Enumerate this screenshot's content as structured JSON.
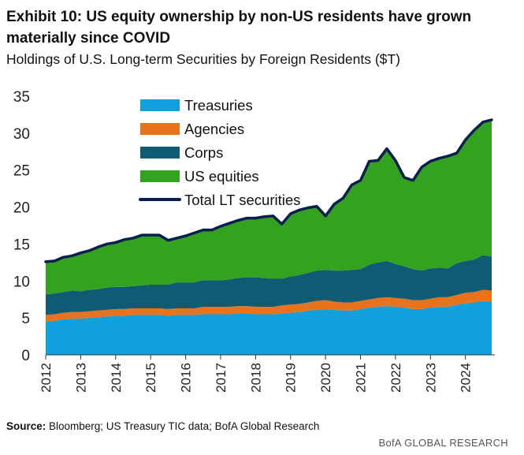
{
  "title": "Exhibit 10: US equity ownership by non-US residents have grown materially since COVID",
  "subtitle": "Holdings of U.S. Long-term Securities by Foreign Residents ($T)",
  "source_label": "Source:",
  "source_text": " Bloomberg; US Treasury TIC data; BofA Global Research",
  "brand": "BofA GLOBAL RESEARCH",
  "colors": {
    "treasuries": "#10a0dc",
    "agencies": "#e8731c",
    "corps": "#0f5b73",
    "us_equities": "#33a31f",
    "total": "#0b1f4e"
  },
  "chart_data": {
    "type": "area",
    "stacked": true,
    "x_ticks": [
      "2012",
      "2013",
      "2014",
      "2015",
      "2016",
      "2017",
      "2018",
      "2019",
      "2020",
      "2021",
      "2022",
      "2023",
      "2024"
    ],
    "x": [
      2012,
      2012.25,
      2012.5,
      2012.75,
      2013,
      2013.25,
      2013.5,
      2013.75,
      2014,
      2014.25,
      2014.5,
      2014.75,
      2015,
      2015.25,
      2015.5,
      2015.75,
      2016,
      2016.25,
      2016.5,
      2016.75,
      2017,
      2017.25,
      2017.5,
      2017.75,
      2018,
      2018.25,
      2018.5,
      2018.75,
      2019,
      2019.25,
      2019.5,
      2019.75,
      2020,
      2020.25,
      2020.5,
      2020.75,
      2021,
      2021.25,
      2021.5,
      2021.75,
      2022,
      2022.25,
      2022.5,
      2022.75,
      2023,
      2023.25,
      2023.5,
      2023.75,
      2024,
      2024.25,
      2024.5,
      2024.75
    ],
    "series": [
      {
        "name": "Treasuries",
        "values": [
          4.5,
          4.6,
          4.8,
          4.9,
          4.9,
          5.0,
          5.1,
          5.2,
          5.3,
          5.3,
          5.4,
          5.4,
          5.4,
          5.4,
          5.3,
          5.4,
          5.4,
          5.4,
          5.5,
          5.5,
          5.5,
          5.5,
          5.6,
          5.6,
          5.5,
          5.5,
          5.5,
          5.6,
          5.7,
          5.8,
          6.0,
          6.1,
          6.2,
          6.1,
          6.0,
          6.0,
          6.2,
          6.4,
          6.5,
          6.6,
          6.5,
          6.4,
          6.2,
          6.2,
          6.4,
          6.5,
          6.5,
          6.8,
          7.0,
          7.1,
          7.3,
          7.2
        ]
      },
      {
        "name": "Agencies",
        "values": [
          0.9,
          0.9,
          0.9,
          0.9,
          0.9,
          0.9,
          0.9,
          0.9,
          0.9,
          0.9,
          0.9,
          0.9,
          0.9,
          0.9,
          0.9,
          0.9,
          0.9,
          0.9,
          1.0,
          1.0,
          1.0,
          1.0,
          1.0,
          1.0,
          1.0,
          1.0,
          1.0,
          1.1,
          1.1,
          1.1,
          1.1,
          1.2,
          1.2,
          1.1,
          1.1,
          1.1,
          1.1,
          1.1,
          1.2,
          1.2,
          1.2,
          1.2,
          1.2,
          1.2,
          1.2,
          1.3,
          1.3,
          1.3,
          1.4,
          1.4,
          1.5,
          1.5
        ]
      },
      {
        "name": "Corps",
        "values": [
          2.8,
          2.8,
          2.8,
          2.9,
          2.8,
          2.9,
          2.9,
          3.0,
          3.0,
          3.0,
          3.0,
          3.1,
          3.2,
          3.2,
          3.3,
          3.5,
          3.5,
          3.5,
          3.6,
          3.6,
          3.6,
          3.7,
          3.8,
          3.9,
          4.0,
          3.9,
          3.8,
          3.6,
          3.8,
          3.9,
          4.0,
          4.1,
          4.1,
          4.2,
          4.3,
          4.4,
          4.3,
          4.7,
          4.8,
          4.9,
          4.6,
          4.4,
          4.2,
          4.0,
          4.1,
          4.0,
          3.9,
          4.3,
          4.3,
          4.4,
          4.7,
          4.6
        ]
      },
      {
        "name": "US equities",
        "values": [
          4.5,
          4.5,
          4.7,
          4.8,
          5.2,
          5.4,
          5.7,
          5.9,
          6.0,
          6.4,
          6.6,
          6.8,
          6.7,
          6.7,
          6.0,
          6.0,
          6.3,
          6.7,
          6.8,
          6.8,
          7.3,
          7.6,
          7.8,
          8.0,
          8.0,
          8.3,
          8.5,
          7.4,
          8.5,
          8.8,
          8.8,
          8.7,
          7.3,
          9.0,
          9.8,
          11.5,
          12.0,
          14.0,
          13.8,
          15.2,
          14.0,
          12.0,
          12.0,
          14.0,
          14.5,
          14.8,
          15.2,
          14.9,
          16.4,
          17.5,
          18.0,
          18.5
        ]
      }
    ],
    "total": {
      "name": "Total LT securities",
      "values": [
        12.6,
        12.7,
        13.2,
        13.4,
        13.8,
        14.1,
        14.6,
        15.0,
        15.2,
        15.6,
        15.8,
        16.2,
        16.2,
        16.2,
        15.5,
        15.8,
        16.1,
        16.5,
        16.9,
        16.9,
        17.4,
        17.8,
        18.2,
        18.5,
        18.5,
        18.7,
        18.8,
        17.7,
        19.1,
        19.6,
        19.9,
        20.1,
        18.8,
        20.4,
        21.2,
        23.0,
        23.6,
        26.2,
        26.3,
        27.9,
        26.3,
        24.0,
        23.6,
        25.4,
        26.2,
        26.6,
        26.9,
        27.3,
        29.1,
        30.4,
        31.5,
        31.8
      ]
    },
    "yticks": [
      0,
      5,
      10,
      15,
      20,
      25,
      30,
      35
    ],
    "ylim": [
      0,
      35
    ],
    "xlim": [
      2012,
      2024.75
    ],
    "legend": [
      "Treasuries",
      "Agencies",
      "Corps",
      "US equities",
      "Total LT securities"
    ],
    "legend_position": "top-center",
    "grid": false
  }
}
